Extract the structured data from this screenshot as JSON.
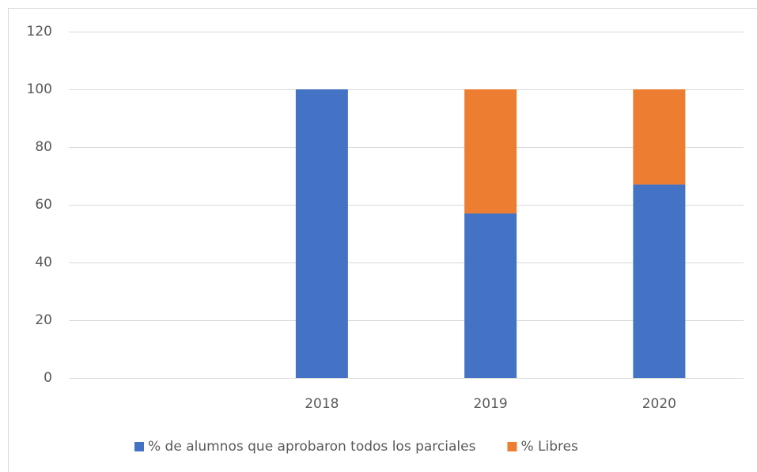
{
  "chart_data": {
    "type": "stacked_bar",
    "categories": [
      null,
      "2018",
      "2019",
      "2020"
    ],
    "series": [
      {
        "name": "% de alumnos que aprobaron todos los parciales",
        "color": "#4472c4",
        "values": [
          null,
          100,
          57,
          67
        ]
      },
      {
        "name": "% Libres",
        "color": "#ed7d31",
        "values": [
          null,
          0,
          43,
          33
        ]
      }
    ],
    "ylim": [
      0,
      120
    ],
    "yticks": [
      0,
      20,
      40,
      60,
      80,
      100,
      120
    ],
    "grid": true,
    "legend": "bottom"
  }
}
